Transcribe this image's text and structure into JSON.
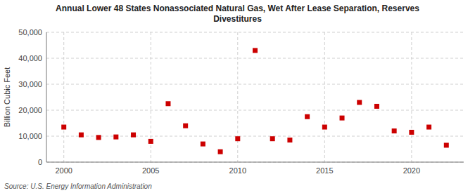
{
  "chart_data": {
    "type": "scatter",
    "title": "Annual Lower 48 States Nonassociated Natural Gas, Wet After Lease Separation, Reserves\nDivestitures",
    "y_label": "Billion Cubic Feet",
    "source": "Source: U.S. Energy Information Administration",
    "x": [
      2000,
      2001,
      2002,
      2003,
      2004,
      2005,
      2006,
      2007,
      2008,
      2009,
      2010,
      2011,
      2012,
      2013,
      2014,
      2015,
      2016,
      2017,
      2018,
      2019,
      2020,
      2021,
      2022
    ],
    "values": [
      13500,
      10500,
      9500,
      9700,
      10500,
      8000,
      22500,
      14000,
      7000,
      4000,
      9000,
      43000,
      9000,
      8500,
      17500,
      13500,
      17000,
      23000,
      21500,
      12000,
      11500,
      13500,
      6500
    ],
    "color": "#cc0000",
    "marker": "square",
    "grid": true,
    "xlim": [
      1999,
      2023
    ],
    "xticks": [
      2000,
      2005,
      2010,
      2015,
      2020
    ],
    "ylim": [
      0,
      50000
    ],
    "yticks": [
      0,
      {
        "value": 10000,
        "label": "10,000"
      },
      {
        "value": 20000,
        "label": "20,000"
      },
      {
        "value": 30000,
        "label": "30,000"
      },
      {
        "value": 40000,
        "label": "40,000"
      },
      {
        "value": 50000,
        "label": "50,000"
      }
    ]
  }
}
